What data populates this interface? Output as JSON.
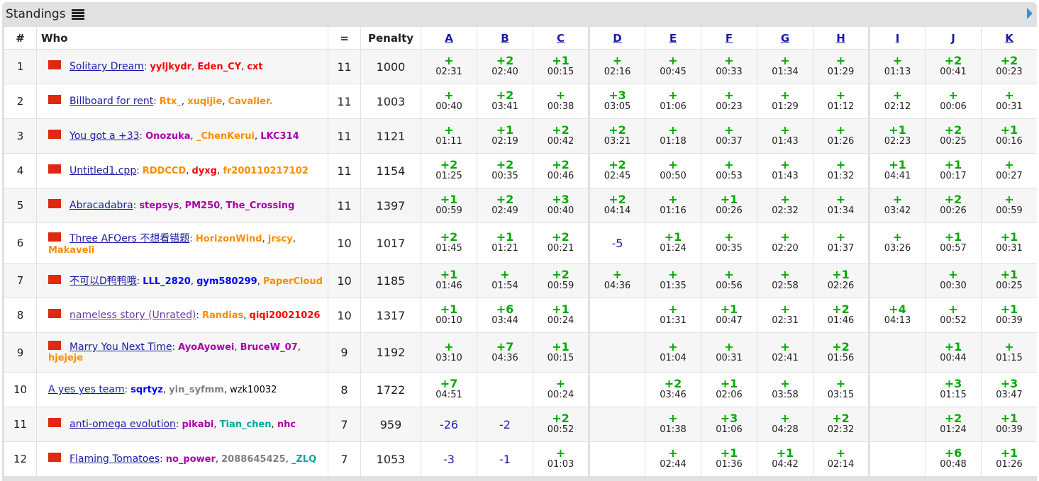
{
  "caption": {
    "title": "Standings"
  },
  "header": {
    "rank": "#",
    "who": "Who",
    "solved": "=",
    "penalty": "Penalty",
    "problems": [
      "A",
      "B",
      "C",
      "D",
      "E",
      "F",
      "G",
      "H",
      "I",
      "J",
      "K"
    ]
  },
  "rows": [
    {
      "rank": "1",
      "team": "Solitary Dream",
      "members": [
        {
          "n": "yyljkydr",
          "c": "red"
        },
        {
          "n": "Eden_CY",
          "c": "red"
        },
        {
          "n": "cxt",
          "c": "red"
        }
      ],
      "solved": "11",
      "penalty": "1000",
      "res": [
        [
          "+",
          "02:31"
        ],
        [
          "+2",
          "02:40"
        ],
        [
          "+1",
          "00:15"
        ],
        [
          "+",
          "02:16"
        ],
        [
          "+",
          "00:45"
        ],
        [
          "+",
          "00:33"
        ],
        [
          "+",
          "01:34"
        ],
        [
          "+",
          "01:29"
        ],
        [
          "+",
          "01:13"
        ],
        [
          "+2",
          "00:41"
        ],
        [
          "+2",
          "00:23"
        ]
      ]
    },
    {
      "rank": "2",
      "team": "Billboard for rent",
      "members": [
        {
          "n": "Rtx_",
          "c": "orange"
        },
        {
          "n": "xuqijie",
          "c": "orange"
        },
        {
          "n": "Cavalier.",
          "c": "orange"
        }
      ],
      "solved": "11",
      "penalty": "1003",
      "res": [
        [
          "+",
          "00:40"
        ],
        [
          "+2",
          "03:41"
        ],
        [
          "+",
          "00:38"
        ],
        [
          "+3",
          "03:05"
        ],
        [
          "+",
          "01:06"
        ],
        [
          "+",
          "00:23"
        ],
        [
          "+",
          "01:29"
        ],
        [
          "+",
          "01:12"
        ],
        [
          "+",
          "02:12"
        ],
        [
          "+",
          "00:06"
        ],
        [
          "+",
          "00:31"
        ]
      ]
    },
    {
      "rank": "3",
      "team": "You got a +33",
      "members": [
        {
          "n": "Onozuka",
          "c": "violet"
        },
        {
          "n": "_ChenKerui",
          "c": "orange"
        },
        {
          "n": "LKC314",
          "c": "violet"
        }
      ],
      "solved": "11",
      "penalty": "1121",
      "res": [
        [
          "+",
          "01:11"
        ],
        [
          "+1",
          "02:19"
        ],
        [
          "+2",
          "00:42"
        ],
        [
          "+2",
          "03:21"
        ],
        [
          "+",
          "01:18"
        ],
        [
          "+",
          "00:37"
        ],
        [
          "+",
          "01:43"
        ],
        [
          "+",
          "01:26"
        ],
        [
          "+1",
          "02:23"
        ],
        [
          "+2",
          "00:25"
        ],
        [
          "+1",
          "00:16"
        ]
      ]
    },
    {
      "rank": "4",
      "team": "Untitled1.cpp",
      "members": [
        {
          "n": "RDDCCD",
          "c": "orange"
        },
        {
          "n": "dyxg",
          "c": "red"
        },
        {
          "n": "fr200110217102",
          "c": "orange"
        }
      ],
      "solved": "11",
      "penalty": "1154",
      "res": [
        [
          "+2",
          "01:25"
        ],
        [
          "+2",
          "00:35"
        ],
        [
          "+2",
          "00:46"
        ],
        [
          "+2",
          "02:45"
        ],
        [
          "+",
          "00:50"
        ],
        [
          "+",
          "00:53"
        ],
        [
          "+",
          "01:43"
        ],
        [
          "+",
          "01:32"
        ],
        [
          "+1",
          "04:41"
        ],
        [
          "+1",
          "00:17"
        ],
        [
          "+",
          "00:27"
        ]
      ]
    },
    {
      "rank": "5",
      "team": "Abracadabra",
      "members": [
        {
          "n": "stepsys",
          "c": "violet"
        },
        {
          "n": "PM250",
          "c": "violet"
        },
        {
          "n": "The_Crossing",
          "c": "violet"
        }
      ],
      "solved": "11",
      "penalty": "1397",
      "res": [
        [
          "+1",
          "00:59"
        ],
        [
          "+2",
          "02:49"
        ],
        [
          "+3",
          "00:40"
        ],
        [
          "+2",
          "04:14"
        ],
        [
          "+",
          "01:16"
        ],
        [
          "+1",
          "00:26"
        ],
        [
          "+",
          "02:32"
        ],
        [
          "+",
          "01:34"
        ],
        [
          "+",
          "03:42"
        ],
        [
          "+2",
          "00:26"
        ],
        [
          "+",
          "00:59"
        ]
      ]
    },
    {
      "rank": "6",
      "team": "Three AFOers 不想看错题",
      "members": [
        {
          "n": "HorizonWind",
          "c": "orange"
        },
        {
          "n": "jrscy",
          "c": "orange"
        },
        {
          "n": "Makaveli",
          "c": "orange"
        }
      ],
      "solved": "10",
      "penalty": "1017",
      "res": [
        [
          "+2",
          "01:45"
        ],
        [
          "+1",
          "01:21"
        ],
        [
          "+2",
          "00:21"
        ],
        [
          "-5",
          ""
        ],
        [
          "+1",
          "01:24"
        ],
        [
          "+",
          "00:35"
        ],
        [
          "+",
          "02:20"
        ],
        [
          "+",
          "01:37"
        ],
        [
          "+",
          "03:26"
        ],
        [
          "+1",
          "00:57"
        ],
        [
          "+1",
          "00:31"
        ]
      ]
    },
    {
      "rank": "7",
      "team": "不可以D鸭鸭哦",
      "members": [
        {
          "n": "LLL_2820",
          "c": "blue"
        },
        {
          "n": "gym580299",
          "c": "blue"
        },
        {
          "n": "PaperCloud",
          "c": "orange"
        }
      ],
      "solved": "10",
      "penalty": "1185",
      "res": [
        [
          "+1",
          "01:46"
        ],
        [
          "+",
          "01:54"
        ],
        [
          "+2",
          "00:59"
        ],
        [
          "+",
          "04:36"
        ],
        [
          "+",
          "01:35"
        ],
        [
          "+",
          "00:56"
        ],
        [
          "+",
          "02:58"
        ],
        [
          "+1",
          "02:26"
        ],
        [
          "",
          ""
        ],
        [
          "+",
          "00:30"
        ],
        [
          "+1",
          "00:25"
        ]
      ]
    },
    {
      "rank": "8",
      "team": "nameless story (Unrated)",
      "members": [
        {
          "n": "Randias",
          "c": "orange"
        },
        {
          "n": "qiqi20021026",
          "c": "red"
        }
      ],
      "solved": "10",
      "penalty": "1317",
      "res": [
        [
          "+1",
          "00:10"
        ],
        [
          "+6",
          "03:44"
        ],
        [
          "+1",
          "00:24"
        ],
        [
          "",
          ""
        ],
        [
          "+",
          "01:31"
        ],
        [
          "+1",
          "00:47"
        ],
        [
          "+",
          "02:31"
        ],
        [
          "+2",
          "01:46"
        ],
        [
          "+4",
          "04:13"
        ],
        [
          "+",
          "00:52"
        ],
        [
          "+1",
          "00:39"
        ]
      ]
    },
    {
      "rank": "9",
      "team": "Marry You Next Time",
      "members": [
        {
          "n": "AyoAyowei",
          "c": "violet"
        },
        {
          "n": "BruceW_07",
          "c": "violet"
        },
        {
          "n": "hjejeje",
          "c": "orange"
        }
      ],
      "solved": "9",
      "penalty": "1192",
      "res": [
        [
          "+",
          "03:10"
        ],
        [
          "+7",
          "04:36"
        ],
        [
          "+1",
          "00:15"
        ],
        [
          "",
          ""
        ],
        [
          "+",
          "01:04"
        ],
        [
          "+",
          "00:31"
        ],
        [
          "+",
          "02:41"
        ],
        [
          "+2",
          "01:56"
        ],
        [
          "",
          ""
        ],
        [
          "+1",
          "00:44"
        ],
        [
          "+",
          "01:15"
        ]
      ]
    },
    {
      "rank": "10",
      "team": "A yes yes team",
      "members": [
        {
          "n": "sqrtyz",
          "c": "blue"
        },
        {
          "n": "yin_syfmm",
          "c": "gray"
        },
        {
          "n": "wzk10032",
          "c": "black"
        }
      ],
      "solved": "8",
      "penalty": "1722",
      "res": [
        [
          "+7",
          "04:51"
        ],
        [
          "",
          ""
        ],
        [
          "+",
          "00:24"
        ],
        [
          "",
          ""
        ],
        [
          "+2",
          "03:46"
        ],
        [
          "+1",
          "02:06"
        ],
        [
          "+",
          "03:58"
        ],
        [
          "+",
          "03:15"
        ],
        [
          "",
          ""
        ],
        [
          "+3",
          "01:15"
        ],
        [
          "+3",
          "03:47"
        ]
      ]
    },
    {
      "rank": "11",
      "team": "anti-omega evolution",
      "members": [
        {
          "n": "pikabi",
          "c": "violet"
        },
        {
          "n": "Tian_chen",
          "c": "cyan"
        },
        {
          "n": "nhc",
          "c": "violet"
        }
      ],
      "solved": "7",
      "penalty": "959",
      "res": [
        [
          "-26",
          ""
        ],
        [
          "-2",
          ""
        ],
        [
          "+2",
          "00:52"
        ],
        [
          "",
          ""
        ],
        [
          "+",
          "01:38"
        ],
        [
          "+3",
          "01:06"
        ],
        [
          "+",
          "04:28"
        ],
        [
          "+2",
          "02:32"
        ],
        [
          "",
          ""
        ],
        [
          "+2",
          "01:24"
        ],
        [
          "+1",
          "00:39"
        ]
      ]
    },
    {
      "rank": "12",
      "team": "Flaming Tomatoes",
      "members": [
        {
          "n": "no_power",
          "c": "violet"
        },
        {
          "n": "2088645425",
          "c": "gray"
        },
        {
          "n": "_ZLQ",
          "c": "cyan"
        }
      ],
      "solved": "7",
      "penalty": "1053",
      "res": [
        [
          "-3",
          ""
        ],
        [
          "-1",
          ""
        ],
        [
          "+",
          "01:03"
        ],
        [
          "",
          ""
        ],
        [
          "+",
          "02:44"
        ],
        [
          "+1",
          "01:36"
        ],
        [
          "+1",
          "04:42"
        ],
        [
          "+",
          "02:14"
        ],
        [
          "",
          ""
        ],
        [
          "+6",
          "00:48"
        ],
        [
          "+1",
          "01:26"
        ]
      ]
    }
  ]
}
